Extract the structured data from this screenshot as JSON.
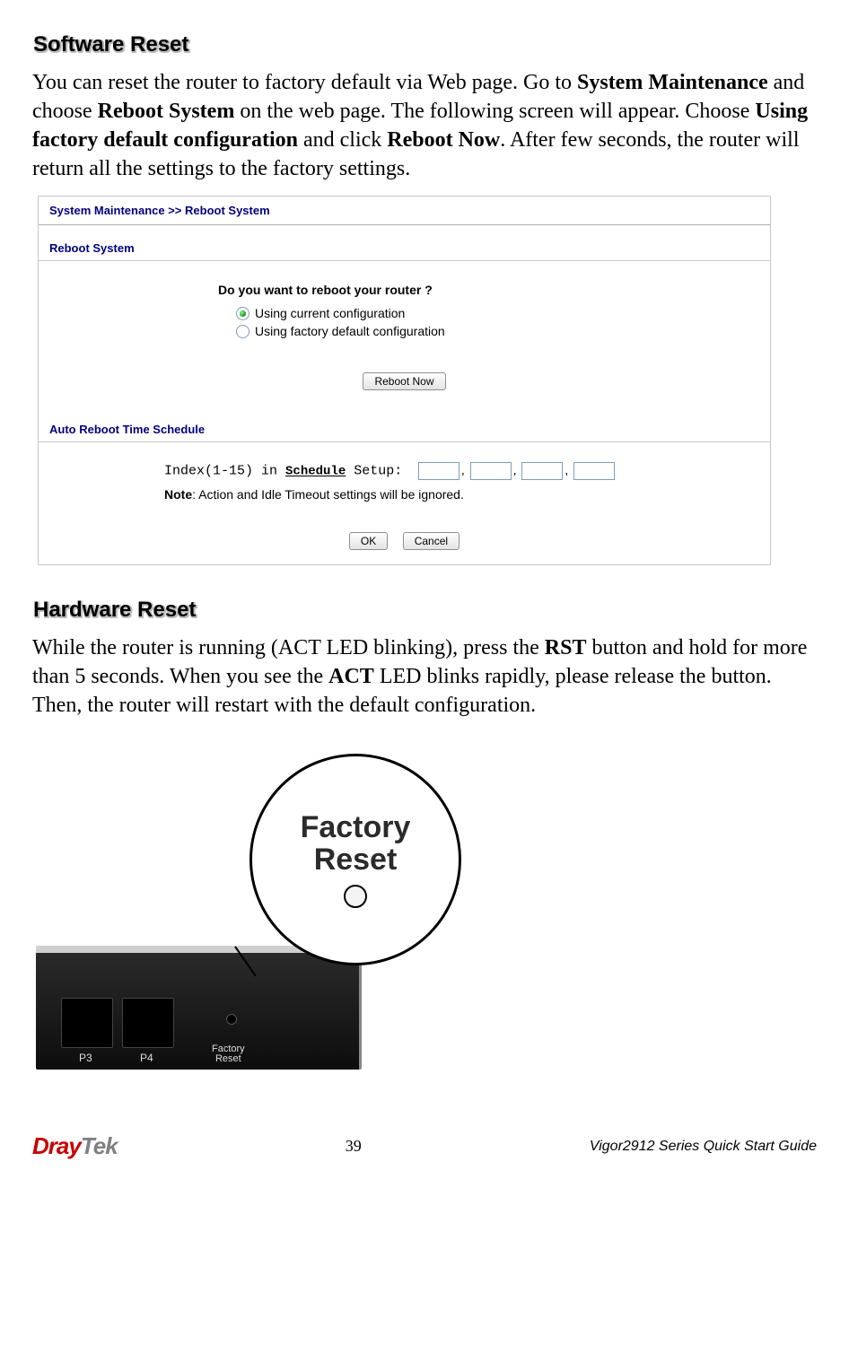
{
  "headings": {
    "software_reset": "Software Reset",
    "hardware_reset": "Hardware Reset"
  },
  "para_software": {
    "t1": "You can reset the router to factory default via Web page. Go to ",
    "b1": "System Maintenance",
    "t2": " and choose ",
    "b2": "Reboot System",
    "t3": " on the web page. The following screen will appear. Choose ",
    "b3": "Using factory default configuration",
    "t4": " and click ",
    "b4": "Reboot Now",
    "t5": ". After few seconds, the router will return all the settings to the factory settings."
  },
  "para_hardware": {
    "t1": "While the router is running (ACT LED blinking), press the ",
    "b1": "RST",
    "t2": " button and hold for more than 5 seconds. When you see the ",
    "b2": "ACT",
    "t3": " LED blinks rapidly, please release the button. Then, the router will restart with the default configuration."
  },
  "screenshot": {
    "breadcrumb": "System Maintenance >> Reboot System",
    "group1": "Reboot System",
    "question": "Do you want to reboot your router ?",
    "opt_current": "Using current configuration",
    "opt_factory": "Using factory default configuration",
    "btn_reboot": "Reboot Now",
    "group2": "Auto Reboot Time Schedule",
    "index_label": "Index(1-15) in ",
    "schedule_word": "Schedule",
    "setup_word": " Setup:",
    "note_label": "Note",
    "note_text": ": Action and Idle Timeout settings will be ignored.",
    "btn_ok": "OK",
    "btn_cancel": "Cancel"
  },
  "hardware_image": {
    "port3": "P3",
    "port4": "P4",
    "fr_small_1": "Factory",
    "fr_small_2": "Reset",
    "bubble_line1": "Factory",
    "bubble_line2": "Reset"
  },
  "footer": {
    "logo_red": "Dray",
    "logo_grey": "Tek",
    "page_number": "39",
    "guide": "Vigor2912 Series Quick Start Guide"
  }
}
